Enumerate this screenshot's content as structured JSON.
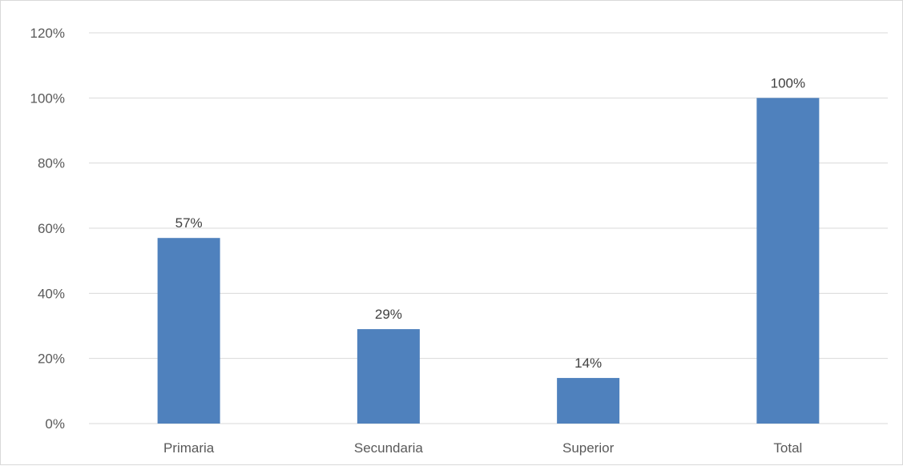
{
  "chart_data": {
    "type": "bar",
    "title": "",
    "xlabel": "",
    "ylabel": "",
    "categories": [
      "Primaria",
      "Secundaria",
      "Superior",
      "Total"
    ],
    "values": [
      57,
      29,
      14,
      100
    ],
    "data_labels": [
      "57%",
      "29%",
      "14%",
      "100%"
    ],
    "ylim": [
      0,
      120
    ],
    "yticks": [
      0,
      20,
      40,
      60,
      80,
      100,
      120
    ],
    "ytick_labels": [
      "0%",
      "20%",
      "40%",
      "60%",
      "80%",
      "100%",
      "120%"
    ],
    "grid": true,
    "legend": "none",
    "bar_color": "#4f81bd",
    "grid_color": "#d9d9d9"
  }
}
